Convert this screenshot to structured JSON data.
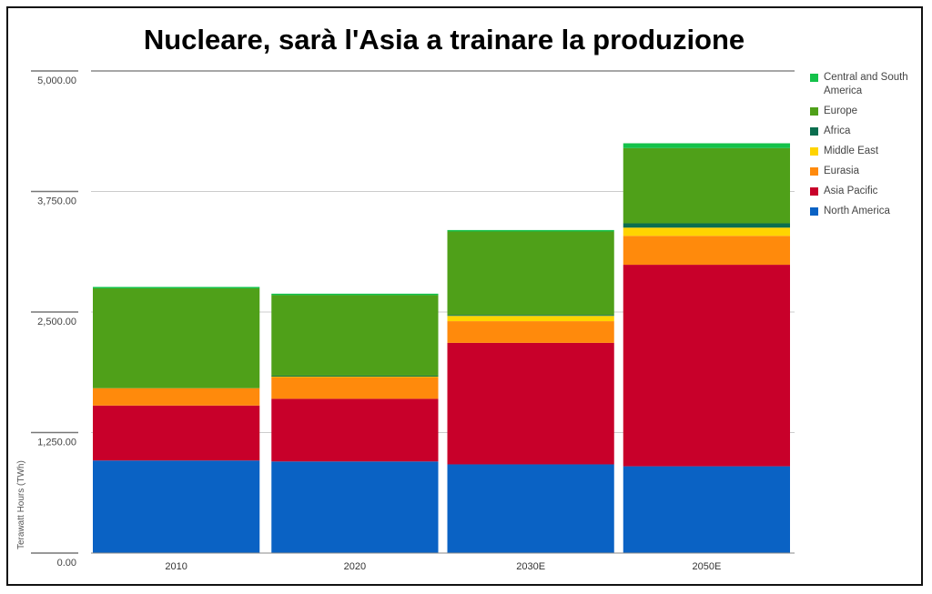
{
  "chart_data": {
    "type": "bar",
    "stacked": true,
    "title": "Nucleare, sarà l'Asia a trainare la produzione",
    "ylabel": "Terawatt Hours (TWh)",
    "xlabel": "",
    "categories": [
      "2010",
      "2020",
      "2030E",
      "2050E"
    ],
    "ylim": [
      0,
      5000
    ],
    "yticks": [
      "0.00",
      "1,250.00",
      "2,500.00",
      "3,750.00",
      "5,000.00"
    ],
    "ytick_values": [
      0,
      1250,
      2500,
      3750,
      5000
    ],
    "grid": true,
    "legend_position": "right",
    "series": [
      {
        "name": "North America",
        "color": "#0a62c4",
        "values": [
          960,
          950,
          920,
          900
        ]
      },
      {
        "name": "Asia Pacific",
        "color": "#c8002a",
        "values": [
          570,
          650,
          1260,
          2090
        ]
      },
      {
        "name": "Eurasia",
        "color": "#ff8a0c",
        "values": [
          180,
          225,
          225,
          300
        ]
      },
      {
        "name": "Middle East",
        "color": "#ffd400",
        "values": [
          0,
          10,
          55,
          85
        ]
      },
      {
        "name": "Africa",
        "color": "#0b6e4f",
        "values": [
          0,
          5,
          10,
          45
        ]
      },
      {
        "name": "Europe",
        "color": "#4fa019",
        "values": [
          1035,
          835,
          865,
          780
        ]
      },
      {
        "name": "Central and South America",
        "color": "#14c24a",
        "values": [
          15,
          15,
          15,
          50
        ]
      }
    ]
  }
}
